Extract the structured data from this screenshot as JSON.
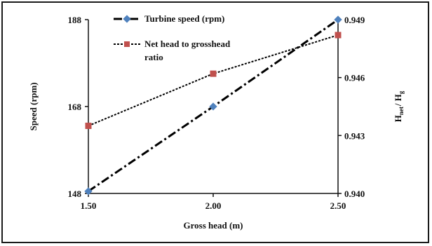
{
  "chart_data": {
    "type": "line",
    "x": [
      1.5,
      2.0,
      2.5
    ],
    "x_tick_labels": [
      "1.50",
      "2.00",
      "2.50"
    ],
    "xlabel": "Gross head (m)",
    "xlim": [
      1.5,
      2.5
    ],
    "ylabel_left": "Speed (rpm)",
    "ylim_left": [
      148,
      188
    ],
    "y_left_tick_labels": [
      "148",
      "168",
      "188"
    ],
    "ylabel_right": "H_net / H_g",
    "ylabel_right_parts": {
      "h1": "H",
      "sub1": "net",
      "sep": "/ H",
      "sub2": "g"
    },
    "ylim_right": [
      0.94,
      0.949
    ],
    "y_right_tick_labels": [
      "0.940",
      "0.943",
      "0.946",
      "0.949"
    ],
    "grid": false,
    "legend_position": "top-center",
    "series": [
      {
        "name": "Turbine speed (rpm)",
        "axis": "left",
        "values": [
          148.5,
          168,
          188
        ],
        "color": "#4f81bd",
        "line_style": "dash-dot",
        "marker": "diamond"
      },
      {
        "name": "Net head to grosshead ratio",
        "name_lines": [
          "Net head to grosshead",
          "ratio"
        ],
        "axis": "right",
        "values": [
          0.9435,
          0.9462,
          0.9482
        ],
        "color": "#c0504d",
        "line_style": "dotted",
        "marker": "square"
      }
    ]
  }
}
